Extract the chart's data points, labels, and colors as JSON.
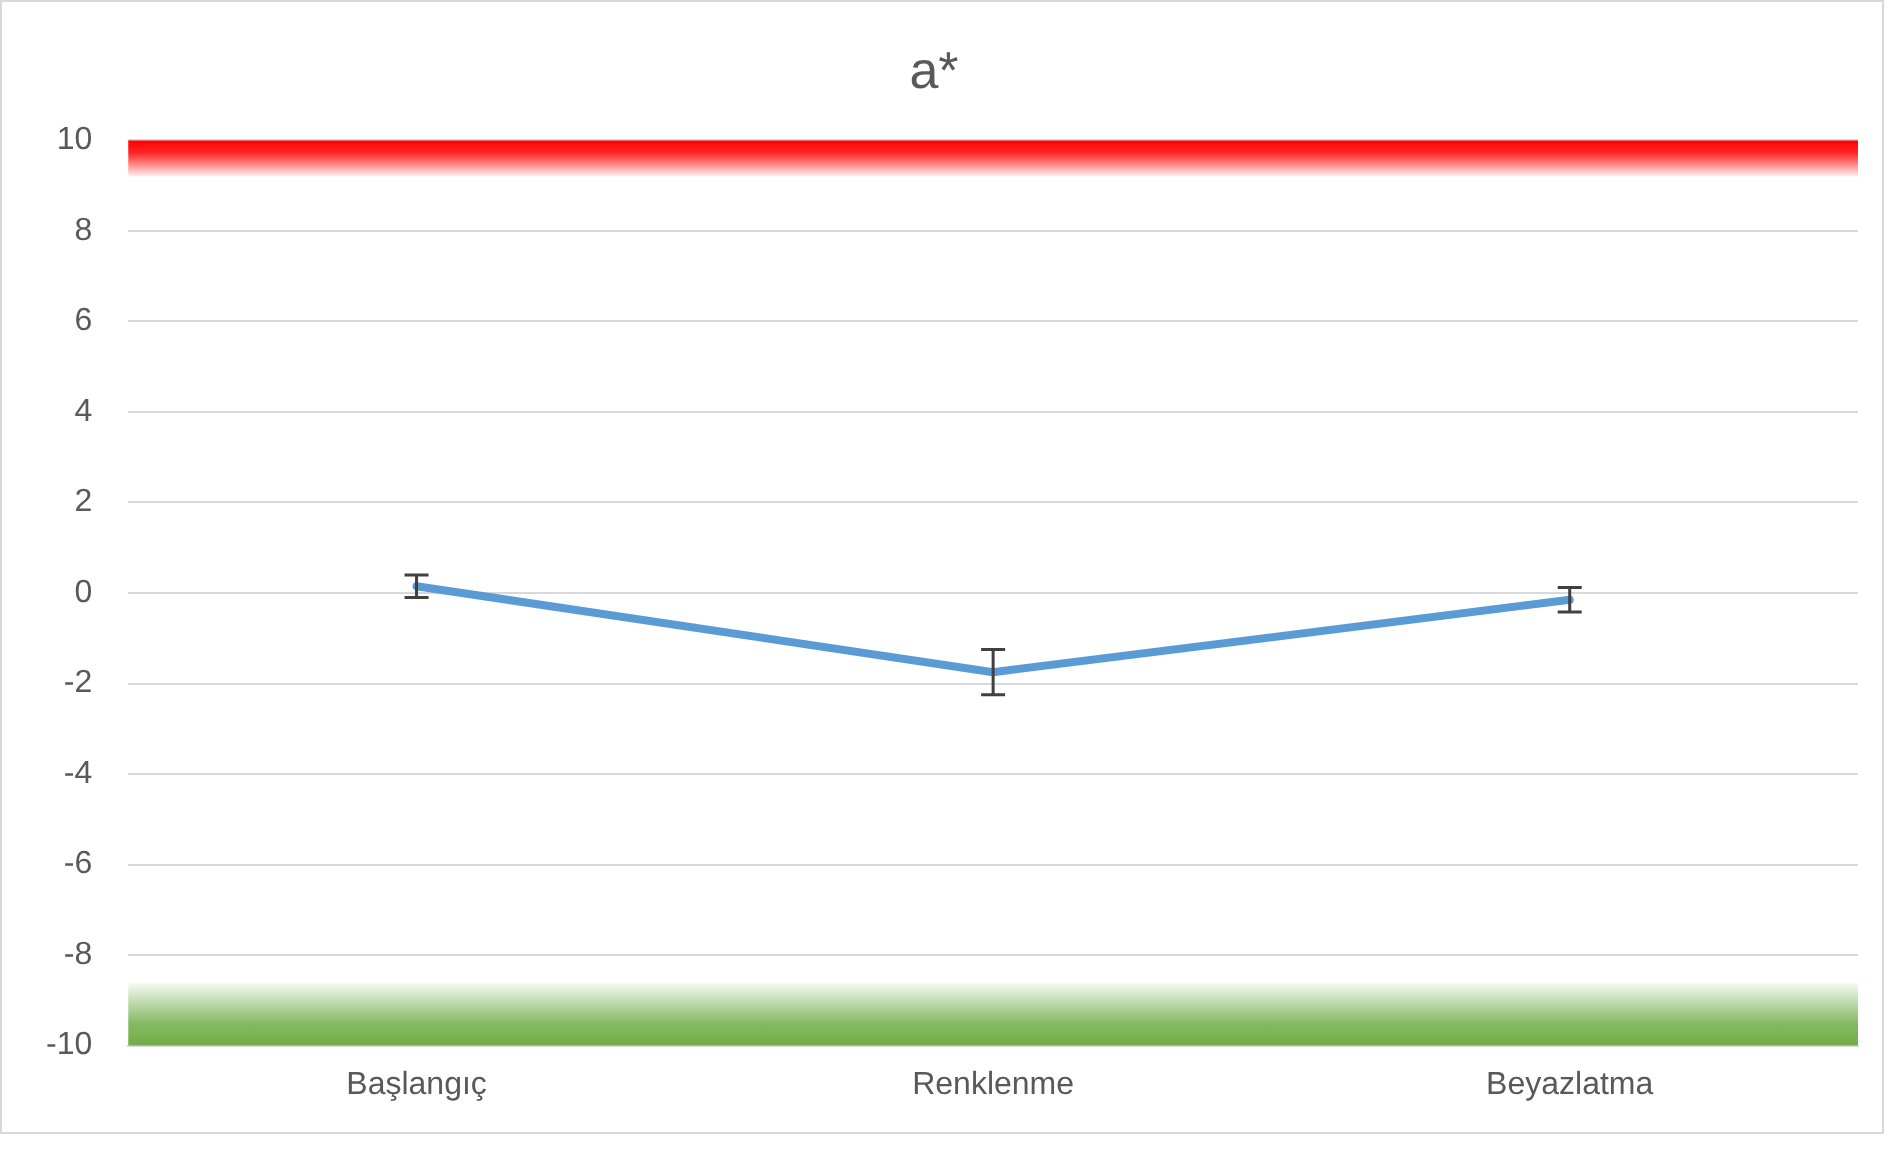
{
  "chart_data": {
    "type": "line",
    "title": "a*",
    "categories": [
      "Başlangıç",
      "Renklenme",
      "Beyazlatma"
    ],
    "series": [
      {
        "color": "#5b9bd5",
        "values": [
          0.15,
          -1.75,
          -0.15
        ],
        "errors": [
          0.25,
          0.5,
          0.27
        ]
      }
    ],
    "ylim": [
      -10,
      10
    ],
    "yticks": [
      -10,
      -8,
      -6,
      -4,
      -2,
      0,
      2,
      4,
      6,
      8,
      10
    ],
    "grid": "y",
    "legend": false,
    "line_style": "solid",
    "bands": [
      {
        "axis": "y",
        "from": 9.2,
        "to": 10,
        "color": "#ff0000"
      },
      {
        "axis": "y",
        "from": -10,
        "to": -8.6,
        "color": "#70ad47"
      }
    ]
  }
}
